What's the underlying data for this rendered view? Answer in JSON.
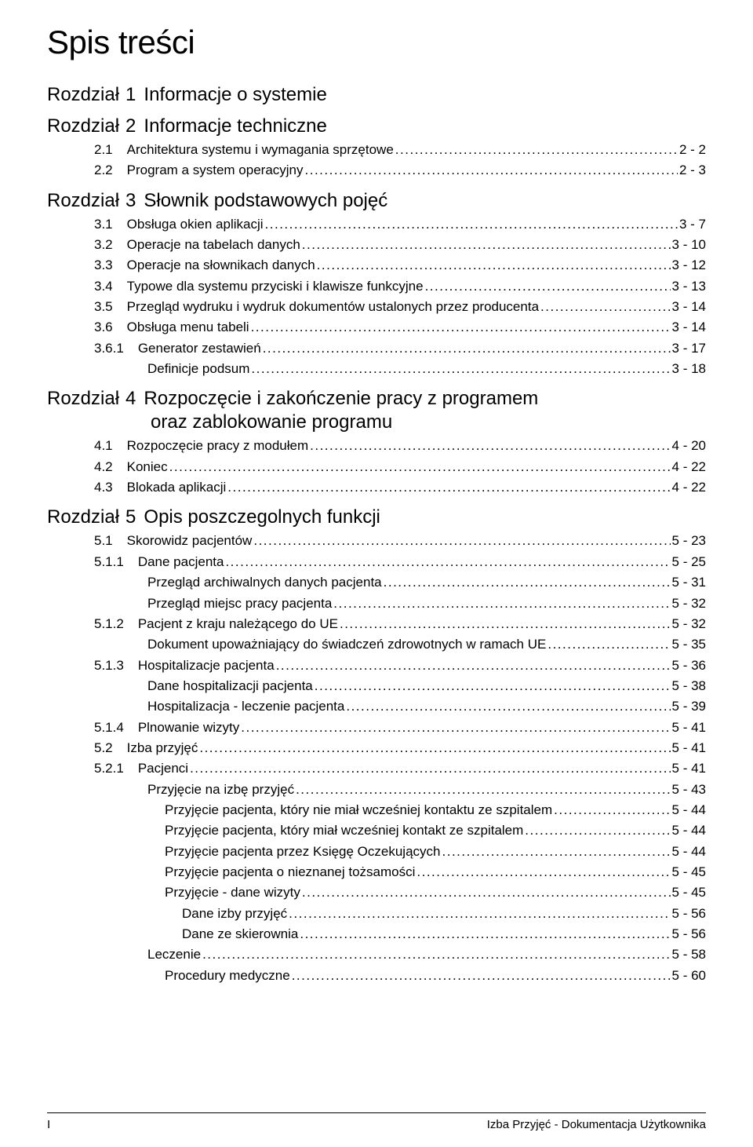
{
  "page_title": "Spis treści",
  "chapter_word": "Rozdział",
  "footer": {
    "left": "I",
    "right": "Izba Przyjęć - Dokumentacja Użytkownika"
  },
  "fontsizes": {
    "title": 42,
    "chapter": 24,
    "entry": 17
  },
  "colors": {
    "text": "#000000",
    "bg": "#ffffff"
  },
  "chapters": [
    {
      "num": "1",
      "title": "Informacje o systemie",
      "entries": []
    },
    {
      "num": "2",
      "title": "Informacje techniczne",
      "entries": [
        {
          "lv": 1,
          "num": "2.1",
          "txt": "Architektura systemu i wymagania sprzętowe",
          "pg": "2 - 2"
        },
        {
          "lv": 1,
          "num": "2.2",
          "txt": "Program a system operacyjny",
          "pg": "2 - 3"
        }
      ]
    },
    {
      "num": "3",
      "title": "Słownik podstawowych pojęć",
      "entries": [
        {
          "lv": 1,
          "num": "3.1",
          "txt": "Obsługa okien aplikacji",
          "pg": "3 - 7"
        },
        {
          "lv": 1,
          "num": "3.2",
          "txt": "Operacje na tabelach danych",
          "pg": "3 - 10"
        },
        {
          "lv": 1,
          "num": "3.3",
          "txt": "Operacje na słownikach danych",
          "pg": "3 - 12"
        },
        {
          "lv": 1,
          "num": "3.4",
          "txt": "Typowe dla systemu przyciski i klawisze funkcyjne",
          "pg": "3 - 13"
        },
        {
          "lv": 1,
          "num": "3.5",
          "txt": "Przegląd wydruku i wydruk dokumentów ustalonych przez producenta",
          "pg": "3 - 14"
        },
        {
          "lv": 1,
          "num": "3.6",
          "txt": "Obsługa menu tabeli",
          "pg": "3 - 14"
        },
        {
          "lv": 2,
          "num": "3.6.1",
          "txt": "Generator zestawień",
          "pg": "3 - 17"
        },
        {
          "lv": 3,
          "num": "",
          "txt": "Definicje podsum",
          "pg": "3 - 18"
        }
      ]
    },
    {
      "num": "4",
      "title": "Rozpoczęcie i zakończenie pracy z programem",
      "title2": "oraz zablokowanie programu",
      "entries": [
        {
          "lv": 1,
          "num": "4.1",
          "txt": "Rozpoczęcie pracy z modułem",
          "pg": "4 - 20"
        },
        {
          "lv": 1,
          "num": "4.2",
          "txt": "Koniec",
          "pg": "4 - 22"
        },
        {
          "lv": 1,
          "num": "4.3",
          "txt": "Blokada aplikacji",
          "pg": "4 - 22"
        }
      ]
    },
    {
      "num": "5",
      "title": "Opis poszczegolnych funkcji",
      "entries": [
        {
          "lv": 1,
          "num": "5.1",
          "txt": "Skorowidz pacjentów",
          "pg": "5 - 23"
        },
        {
          "lv": 2,
          "num": "5.1.1",
          "txt": "Dane pacjenta",
          "pg": "5 - 25"
        },
        {
          "lv": 3,
          "num": "",
          "txt": "Przegląd archiwalnych danych pacjenta",
          "pg": "5 - 31"
        },
        {
          "lv": 3,
          "num": "",
          "txt": "Przegląd miejsc pracy pacjenta",
          "pg": "5 - 32"
        },
        {
          "lv": 2,
          "num": "5.1.2",
          "txt": "Pacjent z kraju należącego do UE",
          "pg": "5 - 32"
        },
        {
          "lv": 3,
          "num": "",
          "txt": "Dokument upoważniający do świadczeń zdrowotnych w ramach UE",
          "pg": "5 - 35"
        },
        {
          "lv": 2,
          "num": "5.1.3",
          "txt": "Hospitalizacje pacjenta",
          "pg": "5 - 36"
        },
        {
          "lv": 3,
          "num": "",
          "txt": "Dane hospitalizacji pacjenta",
          "pg": "5 - 38"
        },
        {
          "lv": 3,
          "num": "",
          "txt": "Hospitalizacja - leczenie pacjenta",
          "pg": "5 - 39"
        },
        {
          "lv": 2,
          "num": "5.1.4",
          "txt": "Plnowanie wizyty",
          "pg": "5 - 41"
        },
        {
          "lv": 1,
          "num": "5.2",
          "txt": "Izba przyjęć",
          "pg": "5 - 41"
        },
        {
          "lv": 2,
          "num": "5.2.1",
          "txt": "Pacjenci",
          "pg": "5 - 41"
        },
        {
          "lv": 3,
          "num": "",
          "txt": "Przyjęcie na izbę przyjęć",
          "pg": "5 - 43"
        },
        {
          "lv": 4,
          "num": "",
          "txt": "Przyjęcie pacjenta, który nie miał wcześniej kontaktu ze szpitalem",
          "pg": "5 - 44"
        },
        {
          "lv": 4,
          "num": "",
          "txt": "Przyjęcie pacjenta, który miał wcześniej kontakt ze szpitalem",
          "pg": "5 - 44"
        },
        {
          "lv": 4,
          "num": "",
          "txt": "Przyjęcie pacjenta przez Księgę Oczekujących",
          "pg": "5 - 44"
        },
        {
          "lv": 4,
          "num": "",
          "txt": "Przyjęcie pacjenta o nieznanej tożsamości",
          "pg": "5 - 45"
        },
        {
          "lv": 4,
          "num": "",
          "txt": "Przyjęcie - dane wizyty",
          "pg": "5 - 45"
        },
        {
          "lv": 5,
          "num": "",
          "txt": "Dane izby przyjęć",
          "pg": "5 - 56"
        },
        {
          "lv": 5,
          "num": "",
          "txt": "Dane ze skierownia",
          "pg": "5 - 56"
        },
        {
          "lv": 3,
          "num": "",
          "txt": "Leczenie",
          "pg": "5 - 58"
        },
        {
          "lv": 4,
          "num": "",
          "txt": "Procedury medyczne",
          "pg": "5 - 60"
        }
      ]
    }
  ]
}
